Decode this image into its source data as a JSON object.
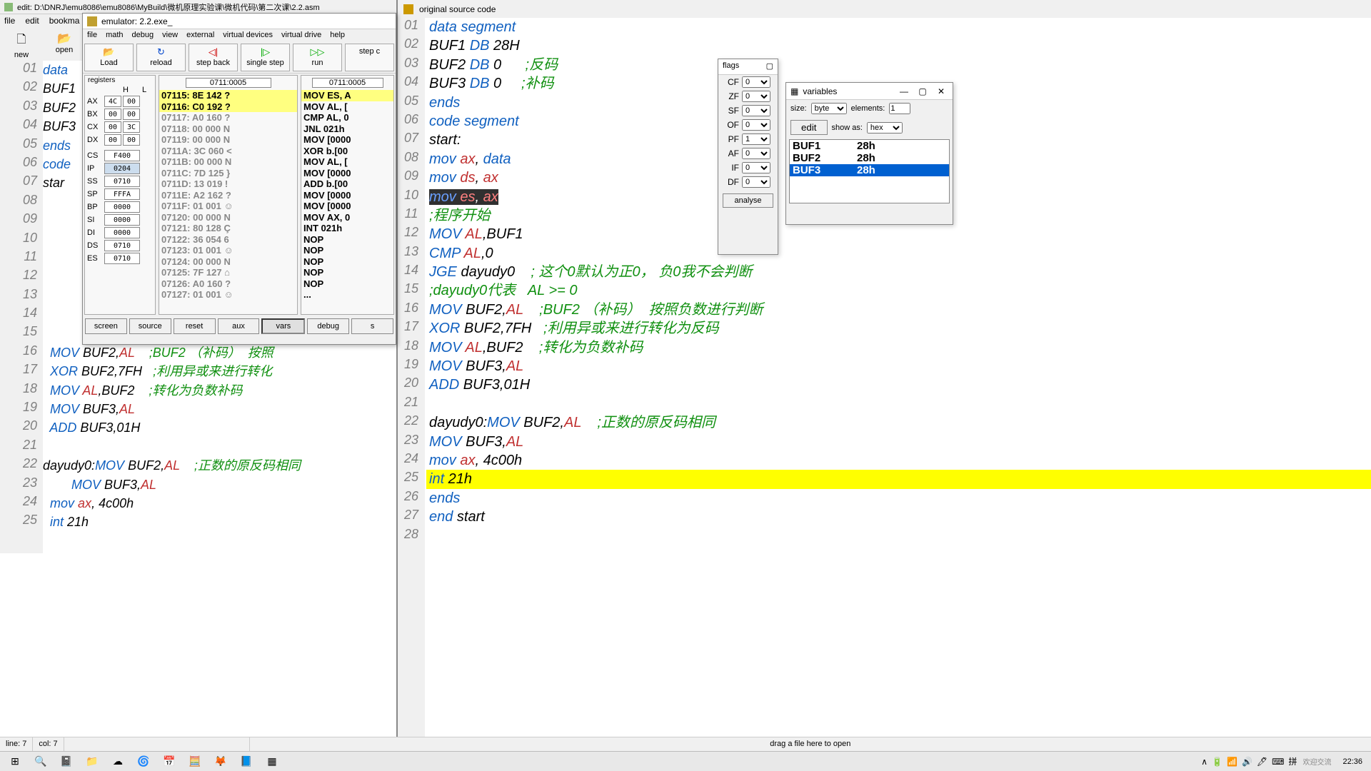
{
  "main_title": "edit: D:\\DNRJ\\emu8086\\emu8086\\MyBuild\\微机原理实验课\\微机代码\\第二次课\\2.2.asm",
  "main_menu": [
    "file",
    "edit",
    "bookma"
  ],
  "toolbar": [
    {
      "icon": "🗋",
      "label": "new"
    },
    {
      "icon": "📂",
      "label": "open"
    }
  ],
  "left_code": [
    {
      "n": "01",
      "h": "<span class='kw'>data</span>"
    },
    {
      "n": "02",
      "h": "<span class='num'>BUF1</span>"
    },
    {
      "n": "03",
      "h": "<span class='num'>BUF2</span>"
    },
    {
      "n": "04",
      "h": "<span class='num'>BUF3</span>"
    },
    {
      "n": "05",
      "h": "<span class='kw'>ends</span>"
    },
    {
      "n": "06",
      "h": "<span class='kw'>code</span>"
    },
    {
      "n": "07",
      "h": "<span class='num'>star</span>"
    },
    {
      "n": "08",
      "h": ""
    },
    {
      "n": "09",
      "h": ""
    },
    {
      "n": "10",
      "h": ""
    },
    {
      "n": "11",
      "h": ""
    },
    {
      "n": "12",
      "h": ""
    },
    {
      "n": "13",
      "h": ""
    },
    {
      "n": "14",
      "h": ""
    },
    {
      "n": "15",
      "h": ""
    },
    {
      "n": "16",
      "h": "  <span class='kw'>MOV</span> BUF2,<span class='reg'>AL</span>    <span class='cmt'>;BUF2 （补码）  按照</span>"
    },
    {
      "n": "17",
      "h": "  <span class='kw'>XOR</span> BUF2,7FH   <span class='cmt'>;利用异或来进行转化</span>"
    },
    {
      "n": "18",
      "h": "  <span class='kw'>MOV</span> <span class='reg'>AL</span>,BUF2    <span class='cmt'>;转化为负数补码</span>"
    },
    {
      "n": "19",
      "h": "  <span class='kw'>MOV</span> BUF3,<span class='reg'>AL</span>"
    },
    {
      "n": "20",
      "h": "  <span class='kw'>ADD</span> BUF3,01H"
    },
    {
      "n": "21",
      "h": ""
    },
    {
      "n": "22",
      "h": "dayudy0:<span class='kw'>MOV</span> BUF2,<span class='reg'>AL</span>    <span class='cmt'>;正数的原反码相同</span>"
    },
    {
      "n": "23",
      "h": "        <span class='kw'>MOV</span> BUF3,<span class='reg'>AL</span>"
    },
    {
      "n": "24",
      "h": "  <span class='kw'>mov</span> <span class='reg'>ax</span>, 4c00h"
    },
    {
      "n": "25",
      "h": "  <span class='kw'>int</span> 21h"
    }
  ],
  "right_title": "original source code",
  "right_code": [
    {
      "n": "01",
      "h": "<span class='kw'>data</span> <span class='kw'>segment</span>"
    },
    {
      "n": "02",
      "h": "BUF1 <span class='kw'>DB</span> 28H"
    },
    {
      "n": "03",
      "h": "BUF2 <span class='kw'>DB</span> 0      <span class='cmt'>;反码</span>"
    },
    {
      "n": "04",
      "h": "BUF3 <span class='kw'>DB</span> 0     <span class='cmt'>;补码</span>"
    },
    {
      "n": "05",
      "h": "<span class='kw'>ends</span>"
    },
    {
      "n": "06",
      "h": "<span class='kw'>code</span> <span class='kw'>segment</span>"
    },
    {
      "n": "07",
      "h": "start:"
    },
    {
      "n": "08",
      "h": "<span class='kw'>mov</span> <span class='reg'>ax</span>, <span class='kw'>data</span>"
    },
    {
      "n": "09",
      "h": "<span class='kw'>mov</span> <span class='reg'>ds</span>, <span class='reg'>ax</span>"
    },
    {
      "n": "10",
      "h": "",
      "hl": "dark",
      "raw": "mov es, ax"
    },
    {
      "n": "11",
      "h": "<span class='cmt'>;程序开始</span>"
    },
    {
      "n": "12",
      "h": "<span class='kw'>MOV</span> <span class='reg'>AL</span>,BUF1"
    },
    {
      "n": "13",
      "h": "<span class='kw'>CMP</span> <span class='reg'>AL</span>,0"
    },
    {
      "n": "14",
      "h": "<span class='kw'>JGE</span> dayudy0    <span class='cmt'>; 这个0默认为正0， 负0我不会判断</span>"
    },
    {
      "n": "15",
      "h": "<span class='cmt'>;dayudy0代表   AL >= 0</span>"
    },
    {
      "n": "16",
      "h": "<span class='kw'>MOV</span> BUF2,<span class='reg'>AL</span>    <span class='cmt'>;BUF2 （补码）  按照负数进行判断</span>"
    },
    {
      "n": "17",
      "h": "<span class='kw'>XOR</span> BUF2,7FH   <span class='cmt'>;利用异或来进行转化为反码</span>"
    },
    {
      "n": "18",
      "h": "<span class='kw'>MOV</span> <span class='reg'>AL</span>,BUF2    <span class='cmt'>;转化为负数补码</span>"
    },
    {
      "n": "19",
      "h": "<span class='kw'>MOV</span> BUF3,<span class='reg'>AL</span>"
    },
    {
      "n": "20",
      "h": "<span class='kw'>ADD</span> BUF3,01H"
    },
    {
      "n": "21",
      "h": ""
    },
    {
      "n": "22",
      "h": "dayudy0:<span class='kw'>MOV</span> BUF2,<span class='reg'>AL</span>    <span class='cmt'>;正数的原反码相同</span>"
    },
    {
      "n": "23",
      "h": "<span class='kw'>MOV</span> BUF3,<span class='reg'>AL</span>"
    },
    {
      "n": "24",
      "h": "<span class='kw'>mov</span> <span class='reg'>ax</span>, 4c00h"
    },
    {
      "n": "25",
      "h": "",
      "hl": "yellow",
      "raw": "int 21h"
    },
    {
      "n": "26",
      "h": "<span class='kw'>ends</span>"
    },
    {
      "n": "27",
      "h": "<span class='kw'>end</span> start"
    },
    {
      "n": "28",
      "h": ""
    }
  ],
  "emu": {
    "title": "emulator: 2.2.exe_",
    "menu": [
      "file",
      "math",
      "debug",
      "view",
      "external",
      "virtual devices",
      "virtual drive",
      "help"
    ],
    "buttons": [
      {
        "icon": "📂",
        "label": "Load",
        "color": "#cc9900"
      },
      {
        "icon": "↻",
        "label": "reload",
        "color": "#0044cc"
      },
      {
        "icon": "◁|",
        "label": "step back",
        "color": "#cc0000"
      },
      {
        "icon": "|▷",
        "label": "single step",
        "color": "#00aa00"
      },
      {
        "icon": "▷▷",
        "label": "run",
        "color": "#00aa00"
      },
      {
        "icon": "",
        "label": "step c"
      }
    ],
    "addr1": "0711:0005",
    "addr2": "0711:0005",
    "regs8": [
      {
        "n": "AX",
        "h": "4C",
        "l": "00"
      },
      {
        "n": "BX",
        "h": "00",
        "l": "00"
      },
      {
        "n": "CX",
        "h": "00",
        "l": "3C"
      },
      {
        "n": "DX",
        "h": "00",
        "l": "00"
      }
    ],
    "regs16": [
      {
        "n": "CS",
        "v": "F400"
      },
      {
        "n": "IP",
        "v": "0204",
        "hl": true
      },
      {
        "n": "SS",
        "v": "0710"
      },
      {
        "n": "SP",
        "v": "FFFA"
      },
      {
        "n": "BP",
        "v": "0000"
      },
      {
        "n": "SI",
        "v": "0000"
      },
      {
        "n": "DI",
        "v": "0000"
      },
      {
        "n": "DS",
        "v": "0710"
      },
      {
        "n": "ES",
        "v": "0710"
      }
    ],
    "mem": [
      {
        "t": "07115: 8E 142 ?",
        "hl": true
      },
      {
        "t": "07116: C0 192 ?",
        "hl": true
      },
      {
        "t": "07117: A0 160 ?"
      },
      {
        "t": "07118: 00 000 N"
      },
      {
        "t": "07119: 00 000 N"
      },
      {
        "t": "0711A: 3C 060 <"
      },
      {
        "t": "0711B: 00 000 N"
      },
      {
        "t": "0711C: 7D 125 }"
      },
      {
        "t": "0711D: 13 019 !"
      },
      {
        "t": "0711E: A2 162 ?"
      },
      {
        "t": "0711F: 01 001 ☺"
      },
      {
        "t": "07120: 00 000 N"
      },
      {
        "t": "07121: 80 128 Ç"
      },
      {
        "t": "07122: 36 054 6"
      },
      {
        "t": "07123: 01 001 ☺"
      },
      {
        "t": "07124: 00 000 N"
      },
      {
        "t": "07125: 7F 127 ⌂"
      },
      {
        "t": "07126: A0 160 ?"
      },
      {
        "t": "07127: 01 001 ☺"
      }
    ],
    "disasm": [
      {
        "t": "MOV ES, A",
        "hl": true
      },
      {
        "t": "MOV AL, ["
      },
      {
        "t": "CMP AL, 0"
      },
      {
        "t": "JNL 021h"
      },
      {
        "t": "MOV [0000"
      },
      {
        "t": "XOR b.[00"
      },
      {
        "t": "MOV AL, ["
      },
      {
        "t": "MOV [0000"
      },
      {
        "t": "ADD b.[00"
      },
      {
        "t": "MOV [0000"
      },
      {
        "t": "MOV [0000"
      },
      {
        "t": "MOV AX, 0"
      },
      {
        "t": "INT 021h"
      },
      {
        "t": "NOP"
      },
      {
        "t": "NOP"
      },
      {
        "t": "NOP"
      },
      {
        "t": "NOP"
      },
      {
        "t": "NOP"
      },
      {
        "t": "..."
      }
    ],
    "bottom": [
      "screen",
      "source",
      "reset",
      "aux",
      "vars",
      "debug",
      "s"
    ],
    "bottom_active": 4
  },
  "flags": {
    "title": "flags",
    "rows": [
      {
        "n": "CF",
        "v": "0"
      },
      {
        "n": "ZF",
        "v": "0"
      },
      {
        "n": "SF",
        "v": "0"
      },
      {
        "n": "OF",
        "v": "0"
      },
      {
        "n": "PF",
        "v": "1"
      },
      {
        "n": "AF",
        "v": "0"
      },
      {
        "n": "IF",
        "v": "0"
      },
      {
        "n": "DF",
        "v": "0"
      }
    ],
    "analyse": "analyse"
  },
  "vars": {
    "title": "variables",
    "size_label": "size:",
    "size_val": "byte",
    "elements_label": "elements:",
    "elements_val": "1",
    "edit_label": "edit",
    "show_label": "show as:",
    "show_val": "hex",
    "list": [
      {
        "n": "BUF1",
        "v": "28h"
      },
      {
        "n": "BUF2",
        "v": "28h"
      },
      {
        "n": "BUF3",
        "v": "28h",
        "sel": true
      }
    ]
  },
  "status": {
    "line": "line: 7",
    "col": "col: 7",
    "drag": "drag a file here to open"
  },
  "taskbar": {
    "icons": [
      "⊞",
      "🔍",
      "📓",
      "📁",
      "☁",
      "🌀",
      "📅",
      "🧮",
      "🦊",
      "📘",
      "▦"
    ],
    "tray": [
      "∧",
      "🔋",
      "📶",
      "🔊",
      "🖊",
      "⌨",
      "拼"
    ],
    "clock": "22:36",
    "watermark": "欢迎交流"
  }
}
